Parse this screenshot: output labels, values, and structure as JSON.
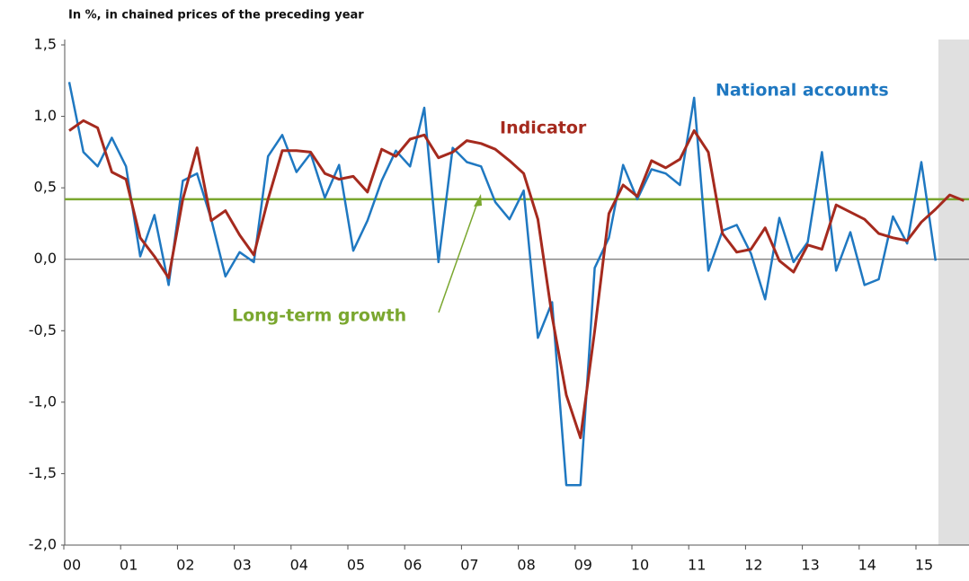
{
  "chart_data": {
    "type": "line",
    "subtitle": "In %, in chained prices of the preceding year",
    "categories": [
      "00",
      null,
      null,
      null,
      "01",
      null,
      null,
      null,
      "02",
      null,
      null,
      null,
      "03",
      null,
      null,
      null,
      "04",
      null,
      null,
      null,
      "05",
      null,
      null,
      null,
      "06",
      null,
      null,
      null,
      "07",
      null,
      null,
      null,
      "08",
      null,
      null,
      null,
      "09",
      null,
      null,
      null,
      "10",
      null,
      null,
      null,
      "11",
      null,
      null,
      null,
      "12",
      null,
      null,
      null,
      "13",
      null,
      null,
      null,
      "14",
      null,
      null,
      null,
      "15",
      null,
      null,
      null
    ],
    "series": [
      {
        "name": "National accounts",
        "color": "#1f78c1",
        "values": [
          1.24,
          0.75,
          0.65,
          0.85,
          0.65,
          0.02,
          0.31,
          -0.18,
          0.55,
          0.6,
          0.28,
          -0.12,
          0.05,
          -0.02,
          0.72,
          0.87,
          0.61,
          0.74,
          0.43,
          0.66,
          0.06,
          0.27,
          0.55,
          0.76,
          0.65,
          1.06,
          -0.02,
          0.78,
          0.68,
          0.65,
          0.4,
          0.28,
          0.48,
          -0.55,
          -0.3,
          -1.58,
          -1.58,
          -0.06,
          0.15,
          0.66,
          0.42,
          0.63,
          0.6,
          0.52,
          1.13,
          -0.08,
          0.2,
          0.24,
          0.04,
          -0.28,
          0.29,
          -0.02,
          0.12,
          0.75,
          -0.08,
          0.19,
          -0.18,
          -0.14,
          0.3,
          0.11,
          0.68,
          -0.01,
          null,
          null
        ]
      },
      {
        "name": "Indicator",
        "color": "#a52a1e",
        "values": [
          0.9,
          0.97,
          0.92,
          0.61,
          0.56,
          0.15,
          0.02,
          -0.13,
          0.42,
          0.78,
          0.27,
          0.34,
          0.17,
          0.03,
          0.42,
          0.76,
          0.76,
          0.75,
          0.6,
          0.56,
          0.58,
          0.47,
          0.77,
          0.72,
          0.84,
          0.87,
          0.71,
          0.75,
          0.83,
          0.81,
          0.77,
          0.69,
          0.6,
          0.28,
          -0.4,
          -0.95,
          -1.25,
          -0.5,
          0.32,
          0.52,
          0.44,
          0.69,
          0.64,
          0.7,
          0.9,
          0.75,
          0.18,
          0.05,
          0.07,
          0.22,
          -0.01,
          -0.09,
          0.1,
          0.07,
          0.38,
          0.33,
          0.28,
          0.18,
          0.15,
          0.13,
          0.26,
          0.35,
          0.45,
          0.41
        ]
      }
    ],
    "reference_line": {
      "label": "Long-term growth",
      "value": 0.42,
      "color": "#7aa72f"
    },
    "ylim": [
      -2,
      1.5
    ],
    "yticks": [
      {
        "value": -2,
        "label": "-2,0"
      },
      {
        "value": -1.5,
        "label": "-1,5"
      },
      {
        "value": -1,
        "label": "-1,0"
      },
      {
        "value": -0.5,
        "label": "-0,5"
      },
      {
        "value": 0,
        "label": "0,0"
      },
      {
        "value": 0.5,
        "label": "0,5"
      },
      {
        "value": 1,
        "label": "1,0"
      },
      {
        "value": 1.5,
        "label": "1,5"
      }
    ]
  }
}
